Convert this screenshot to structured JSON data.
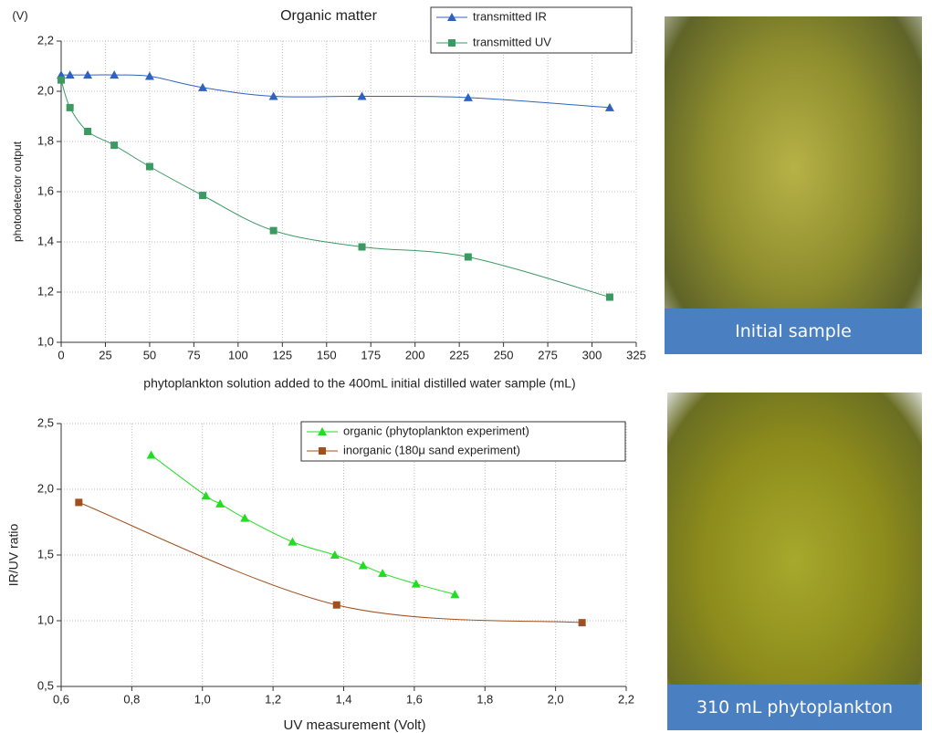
{
  "chart_data": [
    {
      "type": "line",
      "title": "Organic matter",
      "y_unit": "(V)",
      "ylabel": "photodetector output",
      "xlabel": "phytoplankton solution added to the 400mL initial distilled water sample (mL)",
      "xlim": [
        0,
        325
      ],
      "xticks": [
        0,
        25,
        50,
        75,
        100,
        125,
        150,
        175,
        200,
        225,
        250,
        275,
        300,
        325
      ],
      "ylim": [
        1.0,
        2.2
      ],
      "yticks": [
        {
          "value": 1.0,
          "label": "1,0"
        },
        {
          "value": 1.2,
          "label": "1,2"
        },
        {
          "value": 1.4,
          "label": "1,4"
        },
        {
          "value": 1.6,
          "label": "1,6"
        },
        {
          "value": 1.8,
          "label": "1,8"
        },
        {
          "value": 2.0,
          "label": "2,0"
        },
        {
          "value": 2.2,
          "label": "2,2"
        }
      ],
      "grid": true,
      "legend": "upper right",
      "series": [
        {
          "name": "transmitted IR",
          "color": "#2f62c0",
          "marker": "triangle",
          "x": [
            0,
            5,
            15,
            30,
            50,
            80,
            120,
            170,
            230,
            310
          ],
          "values": [
            2.065,
            2.065,
            2.065,
            2.065,
            2.06,
            2.015,
            1.98,
            1.98,
            1.975,
            1.935
          ]
        },
        {
          "name": "transmitted UV",
          "color": "#3a9a62",
          "marker": "square",
          "x": [
            0,
            5,
            15,
            30,
            50,
            80,
            120,
            170,
            230,
            310
          ],
          "values": [
            2.045,
            1.935,
            1.84,
            1.785,
            1.7,
            1.585,
            1.445,
            1.38,
            1.34,
            1.18
          ]
        }
      ]
    },
    {
      "type": "scatter",
      "xlabel": "UV measurement (Volt)",
      "ylabel": "IR/UV ratio",
      "xlim": [
        0.6,
        2.2
      ],
      "xticks": [
        {
          "value": 0.6,
          "label": "0,6"
        },
        {
          "value": 0.8,
          "label": "0,8"
        },
        {
          "value": 1.0,
          "label": "1,0"
        },
        {
          "value": 1.2,
          "label": "1,2"
        },
        {
          "value": 1.4,
          "label": "1,4"
        },
        {
          "value": 1.6,
          "label": "1,6"
        },
        {
          "value": 1.8,
          "label": "1,8"
        },
        {
          "value": 2.0,
          "label": "2,0"
        },
        {
          "value": 2.2,
          "label": "2,2"
        }
      ],
      "ylim": [
        0.5,
        2.5
      ],
      "yticks": [
        {
          "value": 0.5,
          "label": "0,5"
        },
        {
          "value": 1.0,
          "label": "1,0"
        },
        {
          "value": 1.5,
          "label": "1,5"
        },
        {
          "value": 2.0,
          "label": "2,0"
        },
        {
          "value": 2.5,
          "label": "2,5"
        }
      ],
      "grid": true,
      "legend": "upper right",
      "series": [
        {
          "name": "organic (phytoplankton experiment)",
          "color": "#22dd22",
          "marker": "triangle",
          "x": [
            0.855,
            1.01,
            1.05,
            1.12,
            1.255,
            1.375,
            1.455,
            1.51,
            1.605,
            1.715
          ],
          "values": [
            2.26,
            1.95,
            1.89,
            1.78,
            1.6,
            1.5,
            1.42,
            1.36,
            1.28,
            1.2
          ]
        },
        {
          "name": "inorganic (180μ sand experiment)",
          "color": "#a0501e",
          "marker": "square",
          "x": [
            0.65,
            1.38,
            2.075
          ],
          "values": [
            1.9,
            1.12,
            0.985
          ]
        }
      ]
    }
  ],
  "photos": [
    {
      "caption": "Initial sample"
    },
    {
      "caption": "310 mL phytoplankton"
    }
  ]
}
